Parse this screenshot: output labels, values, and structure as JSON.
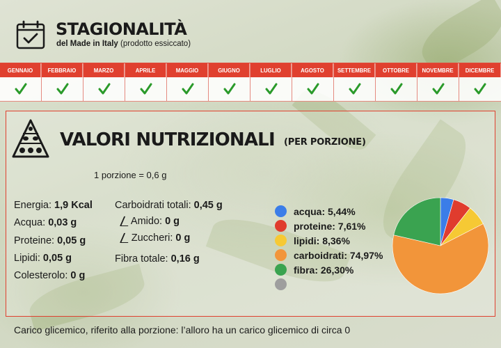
{
  "header": {
    "title": "STAGIONALITÀ",
    "subtitle_bold": "del Made in Italy",
    "subtitle_rest": "(prodotto essiccato)",
    "icon": "calendar-check-icon"
  },
  "months": [
    {
      "label": "GENNAIO",
      "available": true
    },
    {
      "label": "FEBBRAIO",
      "available": true
    },
    {
      "label": "MARZO",
      "available": true
    },
    {
      "label": "APRILE",
      "available": true
    },
    {
      "label": "MAGGIO",
      "available": true
    },
    {
      "label": "GIUGNO",
      "available": true
    },
    {
      "label": "LUGLIO",
      "available": true
    },
    {
      "label": "AGOSTO",
      "available": true
    },
    {
      "label": "SETTEMBRE",
      "available": true
    },
    {
      "label": "OTTOBRE",
      "available": true
    },
    {
      "label": "NOVEMBRE",
      "available": true
    },
    {
      "label": "DICEMBRE",
      "available": true
    }
  ],
  "nutrition": {
    "title": "VALORI NUTRIZIONALI",
    "subtitle": "(PER PORZIONE)",
    "icon": "food-pyramid-icon",
    "portion": "1 porzione = 0,6 g",
    "col1": [
      {
        "label": "Energia:",
        "value": "1,9 Kcal"
      },
      {
        "label": "Acqua:",
        "value": "0,03 g"
      },
      {
        "label": "Proteine:",
        "value": "0,05 g"
      },
      {
        "label": "Lipidi:",
        "value": "0,05 g"
      },
      {
        "label": "Colesterolo:",
        "value": "0 g"
      }
    ],
    "carbs_total": {
      "label": "Carboidrati totali:",
      "value": "0,45 g"
    },
    "starch": {
      "label": "Amido:",
      "value": "0 g"
    },
    "sugars": {
      "label": "Zuccheri:",
      "value": "0 g"
    },
    "fiber_total": {
      "label": "Fibra totale:",
      "value": "0,16 g"
    }
  },
  "chart_data": {
    "type": "pie",
    "slices": [
      {
        "label": "acqua: 5,44%",
        "value": 5.44,
        "color": "#3b7de8"
      },
      {
        "label": "proteine: 7,61%",
        "value": 7.61,
        "color": "#e03c2e"
      },
      {
        "label": "lipidi: 8,36%",
        "value": 8.36,
        "color": "#f6c934"
      },
      {
        "label": "carboidrati: 74,97%",
        "value": 74.97,
        "color": "#f2953a"
      },
      {
        "label": "fibra: 26,30%",
        "value": 26.3,
        "color": "#3aa350"
      },
      {
        "label": "",
        "value": 0,
        "color": "#9e9e9e"
      }
    ]
  },
  "footer": "Carico glicemico, riferito alla porzione: l’alloro ha un carico glicemico di circa 0",
  "colors": {
    "accent": "#e0402f",
    "check": "#2a9a2a"
  }
}
